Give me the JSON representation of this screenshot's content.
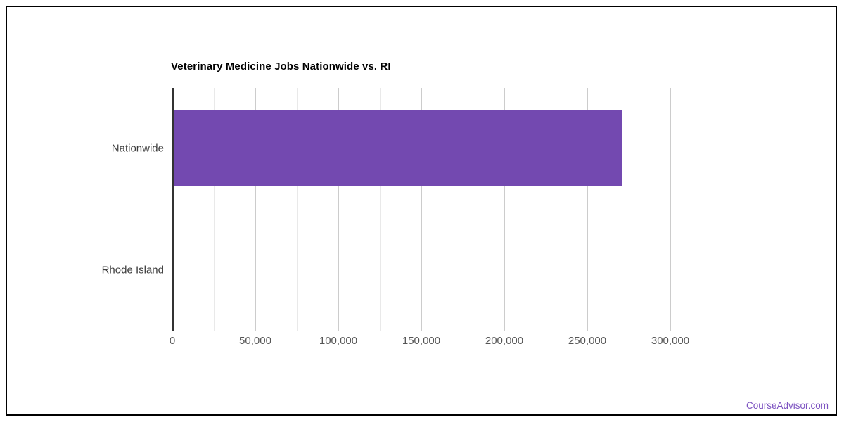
{
  "page": {
    "footer_link": "CourseAdvisor.com"
  },
  "chart_data": {
    "type": "bar",
    "orientation": "horizontal",
    "title": "Veterinary Medicine Jobs Nationwide vs. RI",
    "categories": [
      "Nationwide",
      "Rhode Island"
    ],
    "values": [
      270800,
      800
    ],
    "xlabel": "",
    "ylabel": "",
    "xlim": [
      0,
      325000
    ],
    "x_tick_values": [
      0,
      50000,
      100000,
      150000,
      200000,
      250000,
      300000
    ],
    "x_tick_labels": [
      "0",
      "50,000",
      "100,000",
      "150,000",
      "200,000",
      "250,000",
      "300,000"
    ],
    "minor_grid_step": 25000,
    "grid": true,
    "legend": "none",
    "bar_color": "#7349b0",
    "colors": {
      "major_gridline": "#cccccc",
      "minor_gridline": "#e9e9e9",
      "axis_baseline": "#333333",
      "tick_label": "#555555",
      "category_label": "#3c3c3c",
      "title": "#000000",
      "footer_link": "#7d53c1",
      "frame_border": "#000000"
    }
  }
}
